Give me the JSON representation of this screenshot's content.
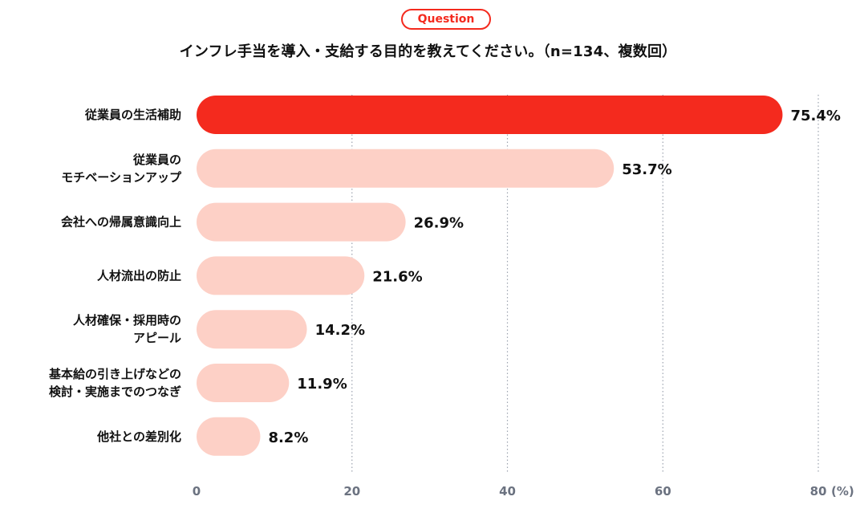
{
  "badge": "Question",
  "question": "インフレ手当を導入・支給する目的を教えてください。（n=134、複数回）",
  "colors": {
    "highlight": "#f42a1e",
    "bar": "#fdd0c6",
    "grid": "#9ca3af",
    "tick": "#6b7280"
  },
  "chart_data": {
    "type": "bar",
    "orientation": "horizontal",
    "categories": [
      [
        "従業員の生活補助"
      ],
      [
        "従業員の",
        "モチベーションアップ"
      ],
      [
        "会社への帰属意識向上"
      ],
      [
        "人材流出の防止"
      ],
      [
        "人材確保・採用時の",
        "アピール"
      ],
      [
        "基本給の引き上げなどの",
        "検討・実施までのつなぎ"
      ],
      [
        "他社との差別化"
      ]
    ],
    "values": [
      75.4,
      53.7,
      26.9,
      21.6,
      14.2,
      11.9,
      8.2
    ],
    "value_labels": [
      "75.4%",
      "53.7%",
      "26.9%",
      "21.6%",
      "14.2%",
      "11.9%",
      "8.2%"
    ],
    "xlim": [
      0,
      80
    ],
    "xticks": [
      "0",
      "20",
      "40",
      "60",
      "80"
    ],
    "xunit": "(%)",
    "grid": "vertical dotted"
  }
}
